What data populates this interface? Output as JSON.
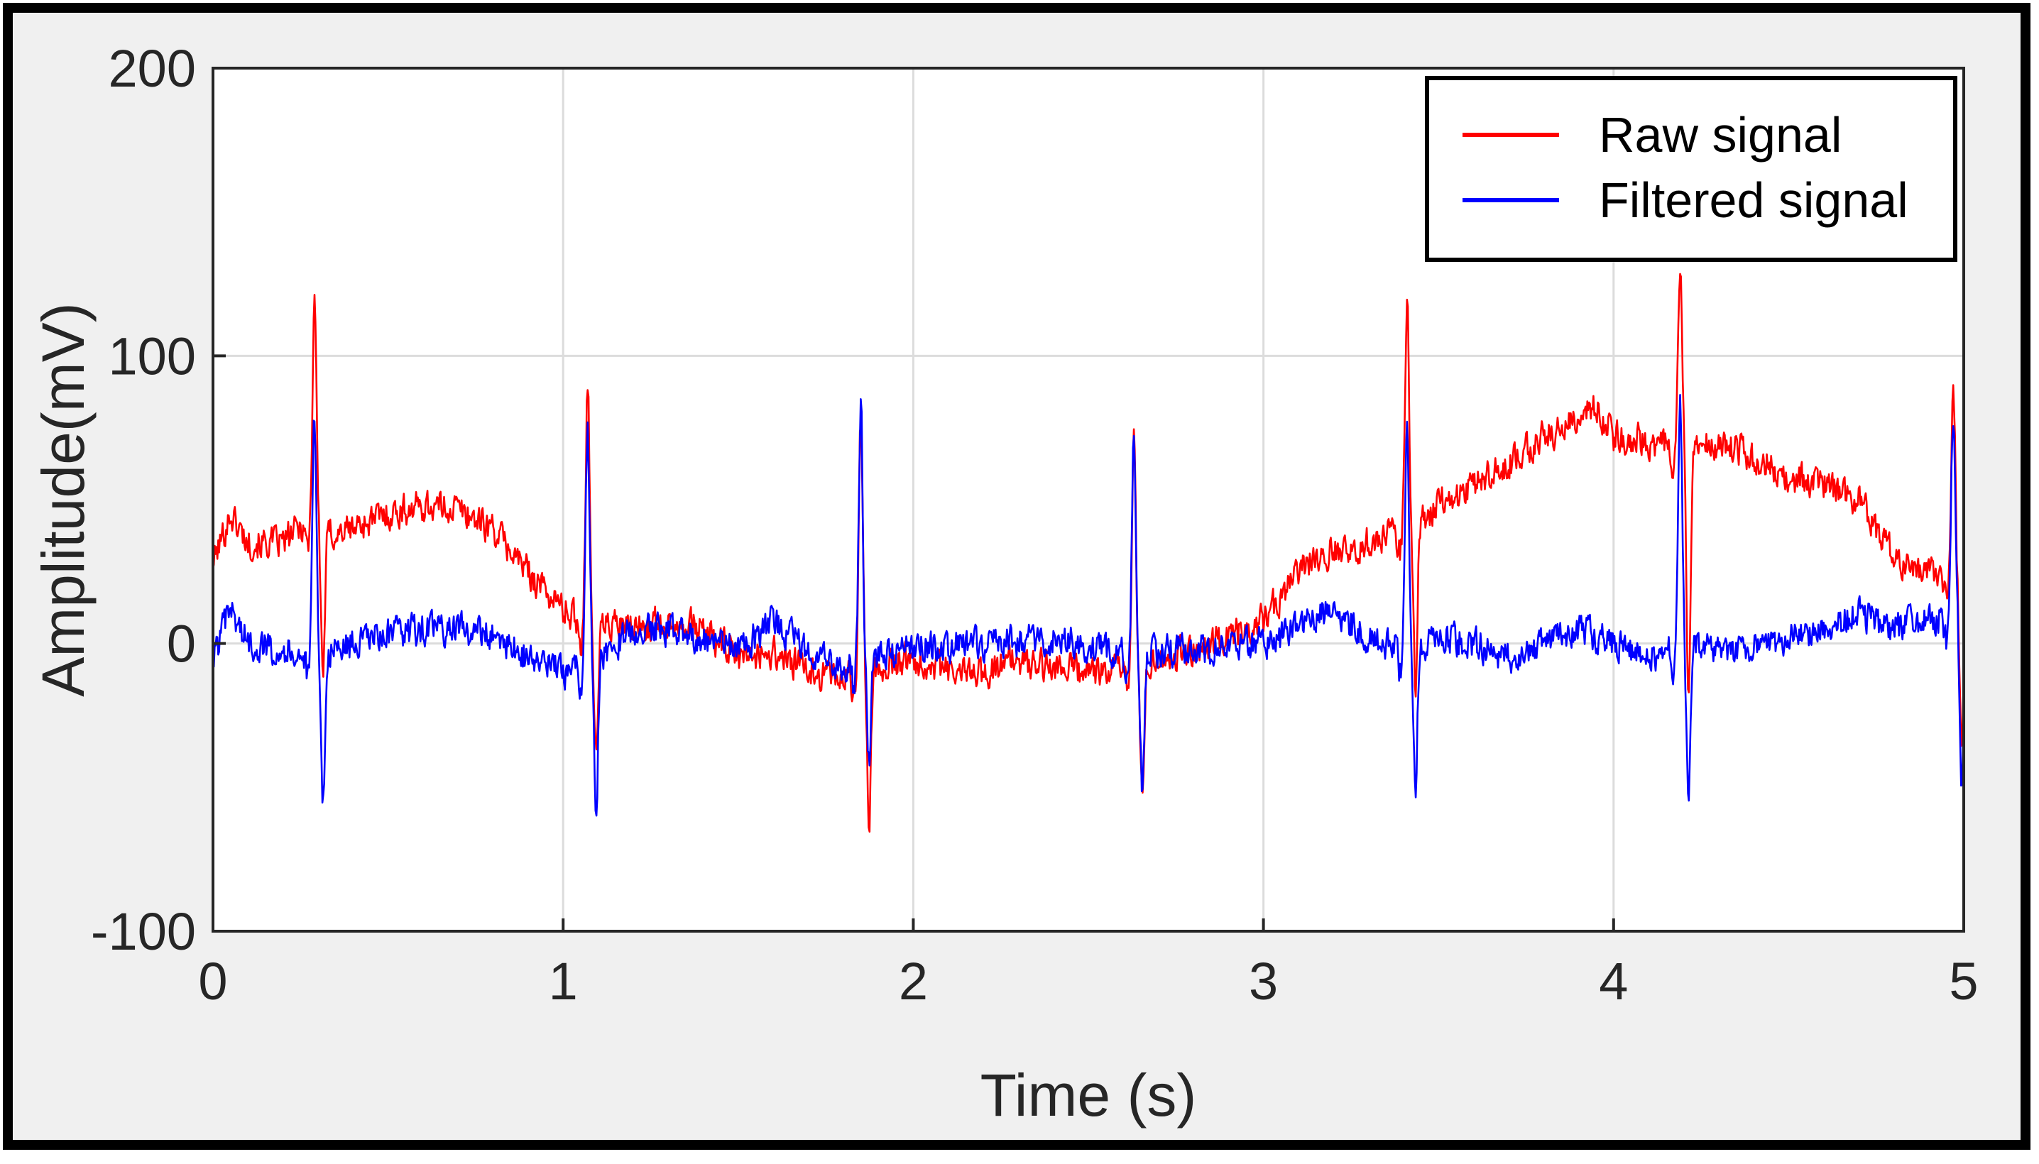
{
  "chart_data": {
    "type": "line",
    "title": "",
    "xlabel": "Time (s)",
    "ylabel": "Amplitude(mV)",
    "xlim": [
      0,
      5
    ],
    "ylim": [
      -100,
      200
    ],
    "xticks": [
      "0",
      "1",
      "2",
      "3",
      "4",
      "5"
    ],
    "yticks": [
      "-100",
      "0",
      "100",
      "200"
    ],
    "grid": true,
    "legend_position": "top-right",
    "beat_times": [
      0.29,
      1.07,
      1.85,
      2.63,
      3.41,
      4.19,
      4.97
    ],
    "series": [
      {
        "name": "Raw signal",
        "color": "#ff0000",
        "baseline": [
          [
            0,
            28
          ],
          [
            0.05,
            45
          ],
          [
            0.1,
            35
          ],
          [
            0.2,
            35
          ],
          [
            0.26,
            42
          ],
          [
            0.35,
            38
          ],
          [
            0.5,
            45
          ],
          [
            0.6,
            48
          ],
          [
            0.7,
            47
          ],
          [
            0.8,
            40
          ],
          [
            0.9,
            25
          ],
          [
            1.0,
            12
          ],
          [
            1.05,
            8
          ],
          [
            1.2,
            5
          ],
          [
            1.3,
            8
          ],
          [
            1.4,
            5
          ],
          [
            1.5,
            -5
          ],
          [
            1.6,
            -3
          ],
          [
            1.7,
            -10
          ],
          [
            1.8,
            -12
          ],
          [
            1.9,
            -8
          ],
          [
            2.0,
            -5
          ],
          [
            2.1,
            -10
          ],
          [
            2.2,
            -10
          ],
          [
            2.3,
            -6
          ],
          [
            2.4,
            -8
          ],
          [
            2.5,
            -10
          ],
          [
            2.6,
            -8
          ],
          [
            2.7,
            -5
          ],
          [
            2.8,
            -2
          ],
          [
            2.9,
            2
          ],
          [
            3.0,
            8
          ],
          [
            3.1,
            25
          ],
          [
            3.2,
            33
          ],
          [
            3.3,
            35
          ],
          [
            3.4,
            40
          ],
          [
            3.5,
            48
          ],
          [
            3.6,
            55
          ],
          [
            3.7,
            62
          ],
          [
            3.8,
            72
          ],
          [
            3.9,
            78
          ],
          [
            3.95,
            82
          ],
          [
            4.0,
            72
          ],
          [
            4.1,
            70
          ],
          [
            4.2,
            68
          ],
          [
            4.3,
            70
          ],
          [
            4.4,
            65
          ],
          [
            4.5,
            58
          ],
          [
            4.6,
            55
          ],
          [
            4.7,
            50
          ],
          [
            4.8,
            30
          ],
          [
            4.9,
            25
          ],
          [
            5.0,
            20
          ]
        ],
        "qrs_peaks": [
          122,
          93,
          77,
          72,
          120,
          130,
          95
        ],
        "qrs_troughs": [
          -10,
          -40,
          -60,
          -55,
          -15,
          -20,
          -40
        ]
      },
      {
        "name": "Filtered signal",
        "color": "#0000ff",
        "baseline": [
          [
            0,
            -5
          ],
          [
            0.05,
            12
          ],
          [
            0.1,
            0
          ],
          [
            0.2,
            -2
          ],
          [
            0.3,
            -5
          ],
          [
            0.4,
            0
          ],
          [
            0.5,
            3
          ],
          [
            0.6,
            5
          ],
          [
            0.7,
            5
          ],
          [
            0.8,
            3
          ],
          [
            0.9,
            -5
          ],
          [
            1.0,
            -10
          ],
          [
            1.1,
            -5
          ],
          [
            1.2,
            5
          ],
          [
            1.3,
            5
          ],
          [
            1.4,
            2
          ],
          [
            1.5,
            -2
          ],
          [
            1.6,
            8
          ],
          [
            1.7,
            -2
          ],
          [
            1.8,
            -8
          ],
          [
            2.0,
            -2
          ],
          [
            2.2,
            0
          ],
          [
            2.4,
            2
          ],
          [
            2.6,
            -3
          ],
          [
            2.8,
            -2
          ],
          [
            3.0,
            0
          ],
          [
            3.1,
            5
          ],
          [
            3.2,
            12
          ],
          [
            3.3,
            2
          ],
          [
            3.4,
            -2
          ],
          [
            3.5,
            2
          ],
          [
            3.6,
            0
          ],
          [
            3.7,
            -5
          ],
          [
            3.8,
            0
          ],
          [
            3.9,
            5
          ],
          [
            4.0,
            0
          ],
          [
            4.1,
            -5
          ],
          [
            4.2,
            0
          ],
          [
            4.3,
            -2
          ],
          [
            4.4,
            0
          ],
          [
            4.5,
            2
          ],
          [
            4.6,
            5
          ],
          [
            4.7,
            10
          ],
          [
            4.8,
            5
          ],
          [
            4.9,
            8
          ],
          [
            5.0,
            10
          ]
        ],
        "qrs_peaks": [
          80,
          75,
          85,
          75,
          80,
          85,
          80
        ],
        "qrs_troughs": [
          -55,
          -58,
          -40,
          -50,
          -50,
          -55,
          -50
        ]
      }
    ]
  }
}
